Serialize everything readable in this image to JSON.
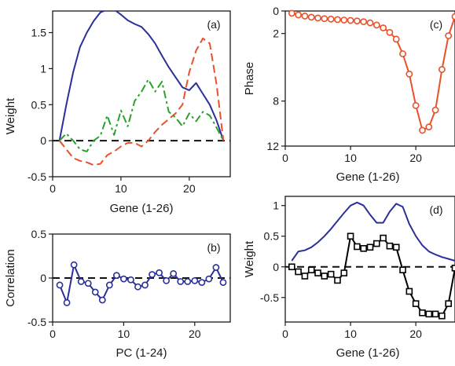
{
  "chart_data": [
    {
      "type": "line",
      "panel_label": "(a)",
      "xlabel": "Gene (1-26)",
      "ylabel": "Weight",
      "xlim": [
        0,
        26
      ],
      "ylim": [
        -0.5,
        1.8
      ],
      "xticks": [
        0,
        10,
        20
      ],
      "yticks": [
        -0.5,
        0,
        0.5,
        1,
        1.5
      ],
      "ytick_labels": [
        "-0.5",
        "0",
        "0.5",
        "1",
        "1.5"
      ],
      "zero_line": true,
      "series": [
        {
          "color": "#2b2f9a",
          "dash": "solid",
          "x": [
            1,
            2,
            3,
            4,
            5,
            6,
            7,
            8,
            9,
            10,
            11,
            12,
            13,
            14,
            15,
            16,
            17,
            18,
            19,
            20,
            21,
            22,
            23,
            24,
            25
          ],
          "y": [
            0.0,
            0.5,
            0.95,
            1.3,
            1.5,
            1.66,
            1.78,
            1.82,
            1.82,
            1.75,
            1.67,
            1.62,
            1.58,
            1.48,
            1.35,
            1.18,
            1.02,
            0.88,
            0.74,
            0.7,
            0.8,
            0.65,
            0.5,
            0.28,
            0.0
          ]
        },
        {
          "color": "#e8512a",
          "dash": "dashed",
          "x": [
            1,
            2,
            3,
            4,
            5,
            6,
            7,
            8,
            9,
            10,
            11,
            12,
            13,
            14,
            15,
            16,
            17,
            18,
            19,
            20,
            21,
            22,
            23,
            24,
            25
          ],
          "y": [
            0.0,
            -0.12,
            -0.24,
            -0.28,
            -0.3,
            -0.34,
            -0.32,
            -0.2,
            -0.15,
            -0.08,
            -0.03,
            -0.03,
            -0.08,
            0.0,
            0.12,
            0.22,
            0.3,
            0.38,
            0.5,
            0.95,
            1.25,
            1.42,
            1.35,
            0.78,
            0.0
          ]
        },
        {
          "color": "#2ca02c",
          "dash": "dashdot",
          "x": [
            1,
            2,
            3,
            4,
            5,
            6,
            7,
            8,
            9,
            10,
            11,
            12,
            13,
            14,
            15,
            16,
            17,
            18,
            19,
            20,
            21,
            22,
            23,
            24,
            25
          ],
          "y": [
            0.0,
            0.1,
            0.0,
            -0.12,
            -0.15,
            0.0,
            0.07,
            0.35,
            0.08,
            0.42,
            0.2,
            0.55,
            0.68,
            0.85,
            0.68,
            0.82,
            0.4,
            0.32,
            0.2,
            0.38,
            0.27,
            0.4,
            0.35,
            0.18,
            0.0
          ]
        }
      ]
    },
    {
      "type": "line",
      "panel_label": "(b)",
      "xlabel": "PC (1-24)",
      "ylabel": "Correlation",
      "xlim": [
        0,
        25
      ],
      "ylim": [
        -0.5,
        0.5
      ],
      "xticks": [
        0,
        10,
        20
      ],
      "yticks": [
        -0.5,
        0,
        0.5
      ],
      "ytick_labels": [
        "-0.5",
        "0",
        "0.5"
      ],
      "zero_line": true,
      "series": [
        {
          "color": "#2b2f9a",
          "marker": "circle",
          "x": [
            1,
            2,
            3,
            4,
            5,
            6,
            7,
            8,
            9,
            10,
            11,
            12,
            13,
            14,
            15,
            16,
            17,
            18,
            19,
            20,
            21,
            22,
            23,
            24
          ],
          "y": [
            -0.08,
            -0.28,
            0.15,
            -0.04,
            -0.06,
            -0.16,
            -0.25,
            -0.08,
            0.03,
            -0.01,
            -0.02,
            -0.1,
            -0.08,
            0.04,
            0.06,
            -0.03,
            0.05,
            -0.04,
            -0.04,
            -0.03,
            -0.05,
            -0.01,
            0.12,
            -0.05
          ]
        }
      ]
    },
    {
      "type": "line",
      "panel_label": "(c)",
      "xlabel": "Gene (1-26)",
      "ylabel": "Phase",
      "xlim": [
        0,
        26
      ],
      "ylim": [
        12,
        0
      ],
      "y_inverted": true,
      "xticks": [
        0,
        10,
        20
      ],
      "yticks": [
        0,
        2,
        8,
        12
      ],
      "ytick_labels": [
        "0",
        "2",
        "8",
        "12"
      ],
      "series": [
        {
          "color": "#e8512a",
          "marker": "circle",
          "x": [
            1,
            2,
            3,
            4,
            5,
            6,
            7,
            8,
            9,
            10,
            11,
            12,
            13,
            14,
            15,
            16,
            17,
            18,
            19,
            20,
            21,
            22,
            23,
            24,
            25,
            26
          ],
          "y": [
            0.2,
            0.35,
            0.45,
            0.55,
            0.62,
            0.68,
            0.72,
            0.76,
            0.8,
            0.84,
            0.88,
            0.95,
            1.05,
            1.25,
            1.5,
            1.9,
            2.5,
            3.8,
            5.6,
            8.4,
            10.6,
            10.3,
            8.8,
            5.2,
            2.2,
            0.5
          ]
        }
      ]
    },
    {
      "type": "line",
      "panel_label": "(d)",
      "xlabel": "Gene (1-26)",
      "ylabel": "Weight",
      "xlim": [
        0,
        26
      ],
      "ylim": [
        -0.9,
        1.15
      ],
      "xticks": [
        0,
        10,
        20
      ],
      "yticks": [
        -0.5,
        0,
        0.5,
        1
      ],
      "ytick_labels": [
        "-0.5",
        "0",
        "0.5",
        "1"
      ],
      "zero_line": true,
      "series": [
        {
          "color": "#2b2f9a",
          "marker": "none",
          "x": [
            1,
            2,
            3,
            4,
            5,
            6,
            7,
            8,
            9,
            10,
            11,
            12,
            13,
            14,
            15,
            16,
            17,
            18,
            19,
            20,
            21,
            22,
            23,
            24,
            25,
            26
          ],
          "y": [
            0.1,
            0.25,
            0.27,
            0.32,
            0.4,
            0.5,
            0.62,
            0.75,
            0.88,
            1.0,
            1.05,
            1.0,
            0.85,
            0.72,
            0.72,
            0.9,
            1.03,
            0.98,
            0.7,
            0.5,
            0.35,
            0.25,
            0.2,
            0.16,
            0.13,
            0.1
          ]
        },
        {
          "color": "#000000",
          "marker": "square",
          "x": [
            1,
            2,
            3,
            4,
            5,
            6,
            7,
            8,
            9,
            10,
            11,
            12,
            13,
            14,
            15,
            16,
            17,
            18,
            19,
            20,
            21,
            22,
            23,
            24,
            25,
            26
          ],
          "y": [
            0.0,
            -0.08,
            -0.15,
            -0.05,
            -0.1,
            -0.15,
            -0.12,
            -0.22,
            -0.1,
            0.5,
            0.33,
            0.3,
            0.32,
            0.38,
            0.47,
            0.34,
            0.32,
            -0.05,
            -0.4,
            -0.6,
            -0.75,
            -0.77,
            -0.77,
            -0.8,
            -0.6,
            -0.02
          ]
        }
      ]
    }
  ]
}
